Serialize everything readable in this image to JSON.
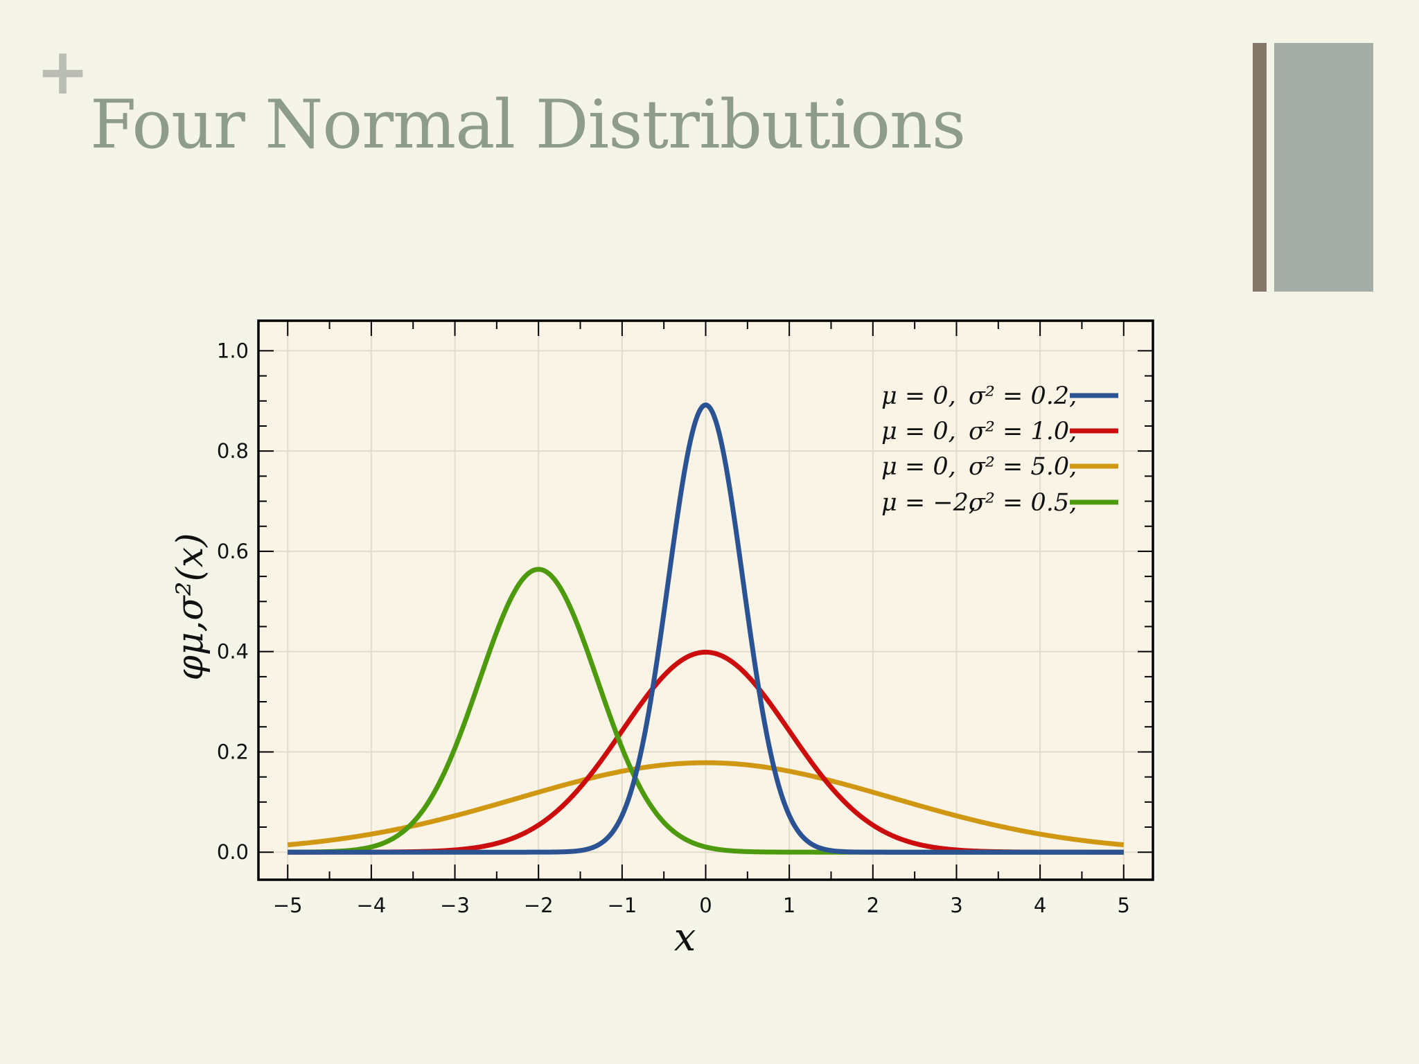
{
  "slide": {
    "plus_symbol": "+",
    "title": "Four Normal Distributions"
  },
  "colors": {
    "background": "#f5f4e8",
    "title": "#8e9c8d",
    "decor_narrow": "#84776a",
    "decor_wide": "#a4ada6"
  },
  "chart_data": {
    "type": "line",
    "title": "",
    "xlabel": "x",
    "ylabel": "φμ,σ²(x)",
    "xlim": [
      -5.35,
      5.35
    ],
    "ylim": [
      -0.055,
      1.06
    ],
    "xticks": [
      -5,
      -4,
      -3,
      -2,
      -1,
      0,
      1,
      2,
      3,
      4,
      5
    ],
    "xtick_labels": [
      "−5",
      "−4",
      "−3",
      "−2",
      "−1",
      "0",
      "1",
      "2",
      "3",
      "4",
      "5"
    ],
    "yticks": [
      0.0,
      0.2,
      0.4,
      0.6,
      0.8,
      1.0
    ],
    "ytick_labels": [
      "0.0",
      "0.2",
      "0.4",
      "0.6",
      "0.8",
      "1.0"
    ],
    "grid": true,
    "legend_position": "top-right",
    "x_range": [
      -5,
      5
    ],
    "series": [
      {
        "mu_label": "μ = 0,",
        "var_label": "σ² = 0.2,",
        "mean": 0,
        "variance": 0.2,
        "color": "#2b5394"
      },
      {
        "mu_label": "μ = 0,",
        "var_label": "σ² = 1.0,",
        "mean": 0,
        "variance": 1.0,
        "color": "#cc0d0d"
      },
      {
        "mu_label": "μ = 0,",
        "var_label": "σ² = 5.0,",
        "mean": 0,
        "variance": 5.0,
        "color": "#cf9712"
      },
      {
        "mu_label": "μ = −2,",
        "var_label": "σ² = 0.5,",
        "mean": -2,
        "variance": 0.5,
        "color": "#4d9a0f"
      }
    ]
  }
}
